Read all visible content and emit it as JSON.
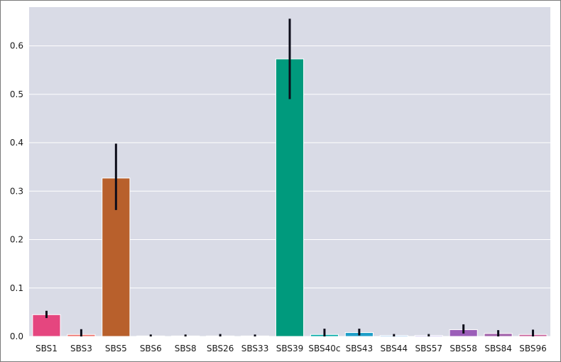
{
  "colors": {
    "plot_background": "#d9dbe6",
    "grid": "#ffffff",
    "error_bar": "#0d0d1a"
  },
  "chart_data": {
    "type": "bar",
    "title": "",
    "xlabel": "",
    "ylabel": "",
    "ylim": [
      0,
      0.68
    ],
    "yticks": [
      0.0,
      0.1,
      0.2,
      0.3,
      0.4,
      0.5,
      0.6
    ],
    "ytick_labels": [
      "0.0",
      "0.1",
      "0.2",
      "0.3",
      "0.4",
      "0.5",
      "0.6"
    ],
    "grid": true,
    "legend": "none",
    "categories": [
      "SBS1",
      "SBS3",
      "SBS5",
      "SBS6",
      "SBS8",
      "SBS26",
      "SBS33",
      "SBS39",
      "SBS40c",
      "SBS43",
      "SBS44",
      "SBS57",
      "SBS58",
      "SBS84",
      "SBS96"
    ],
    "values": [
      0.045,
      0.004,
      0.327,
      0.001,
      0.001,
      0.001,
      0.001,
      0.573,
      0.004,
      0.008,
      0.002,
      0.002,
      0.014,
      0.006,
      0.004
    ],
    "error_low": [
      0.038,
      0.0,
      0.261,
      0.0,
      0.0,
      0.0,
      0.0,
      0.49,
      0.0,
      0.002,
      0.0,
      0.0,
      0.006,
      0.0,
      0.0
    ],
    "error_high": [
      0.053,
      0.015,
      0.398,
      0.004,
      0.004,
      0.005,
      0.004,
      0.656,
      0.016,
      0.016,
      0.005,
      0.005,
      0.025,
      0.013,
      0.014
    ],
    "colors": [
      "#e5467f",
      "#ee6f6a",
      "#b8602c",
      "#b98a2c",
      "#a8a233",
      "#7db03c",
      "#3aae55",
      "#009a7d",
      "#00a9a6",
      "#1e9ec8",
      "#5aa2e6",
      "#9d8fe6",
      "#9b5eb8",
      "#a05fa8",
      "#c8609a"
    ]
  }
}
